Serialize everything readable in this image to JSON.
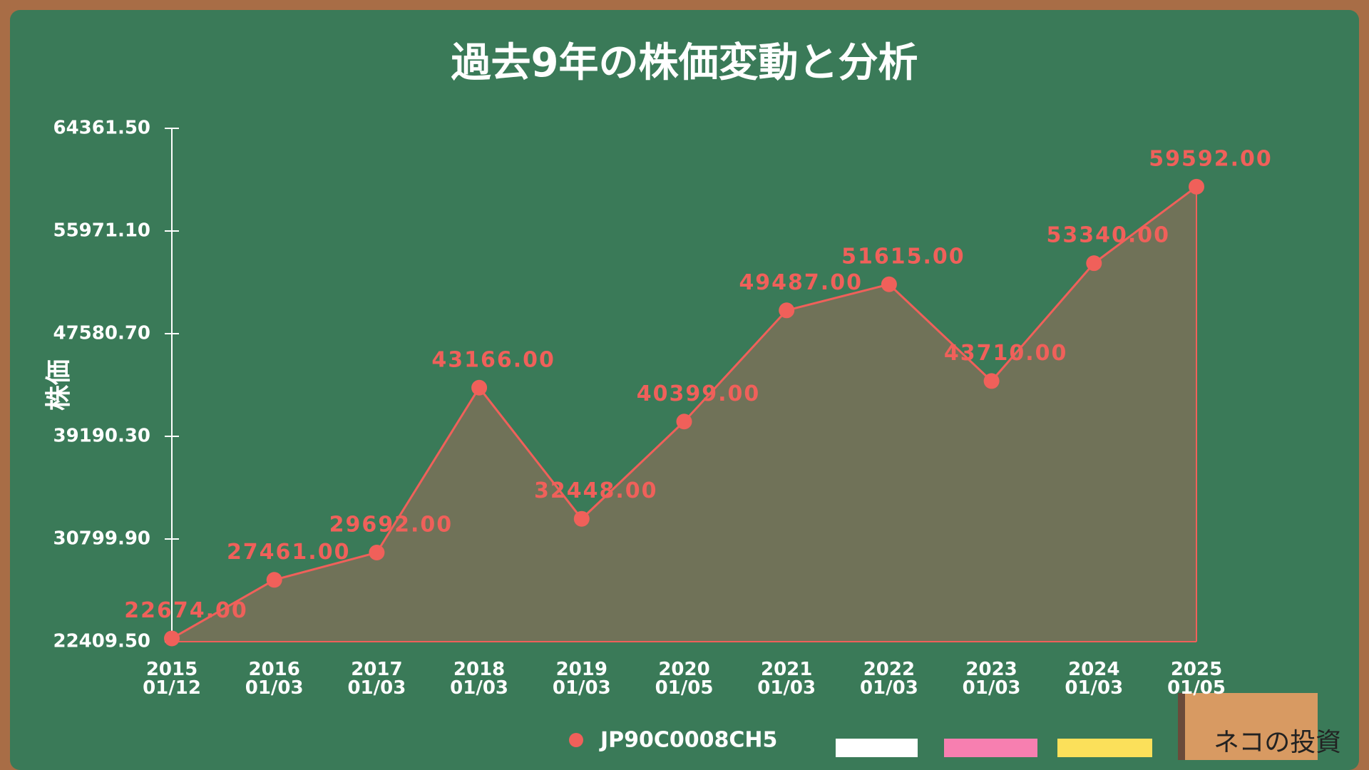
{
  "chart_data": {
    "type": "line",
    "title": "過去9年の株価変動と分析",
    "y_label": "株価",
    "categories": [
      "2015\n01/12",
      "2016\n01/03",
      "2017\n01/03",
      "2018\n01/03",
      "2019\n01/03",
      "2020\n01/05",
      "2021\n01/03",
      "2022\n01/03",
      "2023\n01/03",
      "2024\n01/03",
      "2025\n01/05"
    ],
    "series": [
      {
        "name": "JP90C0008CH5",
        "color": "#f0605a",
        "values": [
          22674,
          27461,
          29692,
          43166,
          32448,
          40399,
          49487,
          51615,
          43710,
          53340,
          59592
        ],
        "value_labels": [
          "22674.00",
          "27461.00",
          "29692.00",
          "43166.00",
          "32448.00",
          "40399.00",
          "49487.00",
          "51615.00",
          "43710.00",
          "53340.00",
          "59592.00"
        ]
      }
    ],
    "ylim": [
      22409.5,
      64361.5
    ],
    "yticks": [
      {
        "value": 22409.5,
        "label": "22409.50"
      },
      {
        "value": 30799.9,
        "label": "30799.90"
      },
      {
        "value": 39190.3,
        "label": "39190.30"
      },
      {
        "value": 47580.7,
        "label": "47580.70"
      },
      {
        "value": 55971.1,
        "label": "55971.10"
      },
      {
        "value": 64361.5,
        "label": "64361.50"
      }
    ],
    "area": true
  },
  "logo": "ネコの投資"
}
